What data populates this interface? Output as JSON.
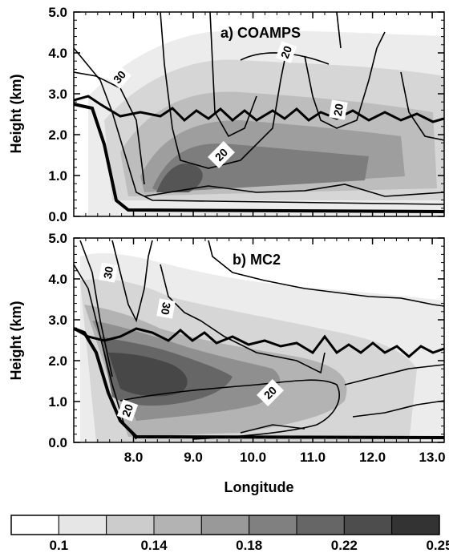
{
  "chart_data": [
    {
      "type": "heatmap",
      "panel_label": "a) COAMPS",
      "ylabel": "Height (km)",
      "xlabel": "",
      "xlim": [
        7.0,
        13.2
      ],
      "ylim": [
        0.0,
        5.0
      ],
      "y_ticks": [
        "0.0",
        "1.0",
        "2.0",
        "3.0",
        "4.0",
        "5.0"
      ],
      "x_ticks": [],
      "contour_labels": [
        "20",
        "20",
        "20",
        "30"
      ]
    },
    {
      "type": "heatmap",
      "panel_label": "b) MC2",
      "ylabel": "Height (km)",
      "xlabel": "Longitude",
      "xlim": [
        7.0,
        13.2
      ],
      "ylim": [
        0.0,
        5.0
      ],
      "y_ticks": [
        "0.0",
        "1.0",
        "2.0",
        "3.0",
        "4.0",
        "5.0"
      ],
      "x_ticks": [
        "8.0",
        "9.0",
        "10.0",
        "11.0",
        "12.0",
        "13.0"
      ],
      "contour_labels": [
        "30",
        "30",
        "20",
        "20"
      ]
    }
  ],
  "colorbar": {
    "levels": [
      0.1,
      0.14,
      0.18,
      0.22,
      0.25
    ],
    "tick_labels": [
      "0.1",
      "0.14",
      "0.18",
      "0.22",
      "0.25"
    ],
    "colors": [
      "#ffffff",
      "#e6e6e6",
      "#cccccc",
      "#b3b3b3",
      "#999999",
      "#808080",
      "#666666",
      "#4d4d4d",
      "#333333"
    ]
  }
}
